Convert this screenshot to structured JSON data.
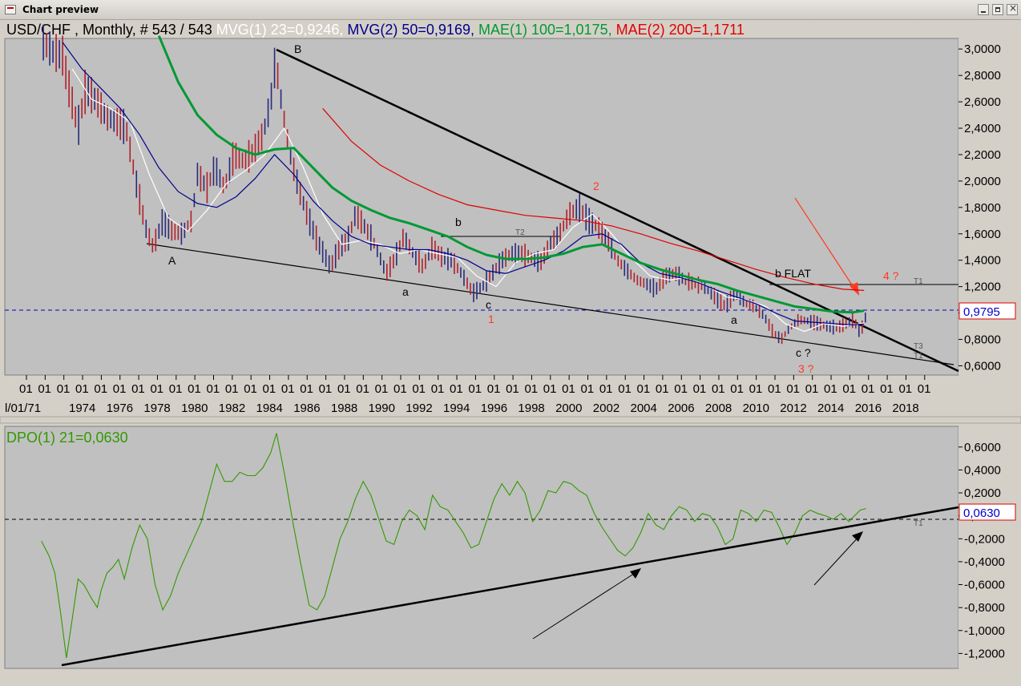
{
  "window": {
    "title": "Chart preview"
  },
  "top_legend": [
    {
      "text": "USD/CHF , Monthly, # 543 / 543",
      "color": "#000000"
    },
    {
      "text": " MVG(1) 23=0,9246,",
      "color": "#ffffff"
    },
    {
      "text": " MVG(2) 50=0,9169,",
      "color": "#00008b"
    },
    {
      "text": " MAE(1) 100=1,0175,",
      "color": "#009933"
    },
    {
      "text": " MAE(2) 200=1,1711",
      "color": "#e00000"
    }
  ],
  "bottom_legend": {
    "text": "DPO(1) 21=0,0630",
    "color": "#339900"
  },
  "price_tag": "0,9795",
  "dpo_tag": "0,0630",
  "x_axis": {
    "month_marks": [
      "01",
      "01",
      "01",
      "01",
      "01",
      "01",
      "01",
      "01",
      "01",
      "01",
      "01",
      "01",
      "01",
      "01",
      "01",
      "01",
      "01",
      "01",
      "01",
      "01",
      "01",
      "01",
      "01",
      "01",
      "01",
      "01",
      "01",
      "01",
      "01",
      "01",
      "01",
      "01",
      "01",
      "01",
      "01",
      "01",
      "01",
      "01",
      "01",
      "01",
      "01",
      "01",
      "01",
      "01",
      "01",
      "01",
      "01",
      "01",
      "01"
    ],
    "first_label": "l/01/71",
    "years": [
      "1974",
      "1976",
      "1978",
      "1980",
      "1982",
      "1984",
      "1986",
      "1988",
      "1990",
      "1992",
      "1994",
      "1996",
      "1998",
      "2000",
      "2002",
      "2004",
      "2006",
      "2008",
      "2010",
      "2012",
      "2014",
      "2016",
      "2018"
    ]
  },
  "annotations": {
    "A": "A",
    "B": "B",
    "b1": "b",
    "a1": "a",
    "c1": "c",
    "one": "1",
    "two": "2",
    "a2": "a",
    "bflat": "b FLAT",
    "c2": "c ?",
    "three": "3 ?",
    "four": "4 ?",
    "T1": "T1",
    "T2": "T2",
    "T3": "T3",
    "T1b": "T1",
    "T1c": "T1"
  },
  "chart_data": [
    {
      "type": "line",
      "title": "USD/CHF , Monthly, # 543 / 543",
      "y_ticks": [
        "3,0000",
        "2,8000",
        "2,6000",
        "2,4000",
        "2,2000",
        "2,0000",
        "1,8000",
        "1,6000",
        "1,4000",
        "1,2000",
        "1,0000",
        "0,8000",
        "0,6000"
      ],
      "y_tick_values": [
        3.0,
        2.8,
        2.6,
        2.4,
        2.2,
        2.0,
        1.8,
        1.6,
        1.4,
        1.2,
        1.0,
        0.8,
        0.6
      ],
      "ylim": [
        0.53,
        3.08
      ],
      "xlim": [
        1971.0,
        2020.5
      ],
      "current_value": 0.9795,
      "series": [
        {
          "name": "USD/CHF",
          "color": "#2a2a7a",
          "x": [
            1973.0,
            1973.5,
            1974.0,
            1974.3,
            1974.8,
            1975.2,
            1975.8,
            1976.3,
            1976.8,
            1977.3,
            1977.8,
            1978.3,
            1978.7,
            1979.2,
            1979.7,
            1980.2,
            1980.7,
            1981.0,
            1981.5,
            1981.9,
            1982.4,
            1982.9,
            1983.4,
            1983.9,
            1984.4,
            1984.8,
            1985.05,
            1985.4,
            1985.8,
            1986.3,
            1986.8,
            1987.3,
            1987.9,
            1988.4,
            1988.8,
            1989.2,
            1989.7,
            1990.2,
            1990.8,
            1991.2,
            1991.7,
            1992.2,
            1992.7,
            1993.2,
            1993.7,
            1994.2,
            1994.7,
            1995.3,
            1995.8,
            1996.3,
            1996.8,
            1997.3,
            1997.8,
            1998.3,
            1998.8,
            1999.3,
            1999.8,
            2000.3,
            2000.8,
            2001.3,
            2001.8,
            2002.3,
            2002.8,
            2003.3,
            2003.8,
            2004.3,
            2004.8,
            2005.3,
            2005.8,
            2006.3,
            2006.8,
            2007.3,
            2007.9,
            2008.4,
            2008.9,
            2009.4,
            2009.9,
            2010.4,
            2010.9,
            2011.3,
            2011.7,
            2012.2,
            2012.7,
            2013.2,
            2013.7,
            2014.2,
            2014.7,
            2015.05,
            2015.4,
            2015.7
          ],
          "y": [
            3.05,
            2.98,
            2.95,
            2.72,
            2.4,
            2.7,
            2.6,
            2.48,
            2.45,
            2.4,
            2.0,
            1.65,
            1.5,
            1.7,
            1.62,
            1.6,
            1.7,
            2.05,
            1.95,
            2.1,
            1.95,
            2.2,
            2.15,
            2.22,
            2.35,
            2.6,
            2.92,
            2.55,
            2.2,
            1.92,
            1.7,
            1.52,
            1.35,
            1.5,
            1.55,
            1.75,
            1.65,
            1.52,
            1.3,
            1.4,
            1.58,
            1.45,
            1.35,
            1.5,
            1.42,
            1.4,
            1.3,
            1.15,
            1.2,
            1.3,
            1.4,
            1.45,
            1.45,
            1.42,
            1.38,
            1.52,
            1.6,
            1.75,
            1.8,
            1.7,
            1.65,
            1.55,
            1.4,
            1.32,
            1.25,
            1.22,
            1.18,
            1.28,
            1.3,
            1.25,
            1.22,
            1.2,
            1.12,
            1.05,
            1.15,
            1.08,
            1.05,
            0.98,
            0.85,
            0.8,
            0.88,
            0.95,
            0.94,
            0.92,
            0.9,
            0.89,
            0.92,
            0.95,
            0.85,
            0.98
          ]
        },
        {
          "name": "MVG(1) 23",
          "color": "#ffffff",
          "x": [
            1974.5,
            1975.5,
            1976.5,
            1977.5,
            1978.5,
            1979.5,
            1980.5,
            1981.5,
            1982.5,
            1983.5,
            1984.5,
            1985.5,
            1986.5,
            1987.5,
            1988.5,
            1989.5,
            1990.5,
            1991.5,
            1992.5,
            1993.5,
            1994.5,
            1995.5,
            1996.5,
            1997.5,
            1998.5,
            1999.5,
            2000.5,
            2001.5,
            2002.5,
            2003.5,
            2004.5,
            2005.5,
            2006.5,
            2007.5,
            2008.5,
            2009.5,
            2010.5,
            2011.5,
            2012.5,
            2013.5,
            2014.5,
            2015.6
          ],
          "y": [
            2.85,
            2.62,
            2.55,
            2.45,
            2.05,
            1.72,
            1.62,
            1.78,
            1.98,
            2.08,
            2.2,
            2.4,
            2.1,
            1.75,
            1.52,
            1.55,
            1.52,
            1.45,
            1.48,
            1.45,
            1.42,
            1.28,
            1.2,
            1.38,
            1.45,
            1.48,
            1.65,
            1.75,
            1.6,
            1.42,
            1.28,
            1.25,
            1.27,
            1.2,
            1.12,
            1.1,
            1.05,
            0.92,
            0.86,
            0.92,
            0.9,
            0.9246
          ]
        },
        {
          "name": "MVG(2) 50",
          "color": "#00008b",
          "x": [
            1974.0,
            1975.0,
            1976.0,
            1977.0,
            1978.0,
            1979.0,
            1980.0,
            1981.0,
            1982.0,
            1983.0,
            1984.0,
            1985.0,
            1986.0,
            1987.0,
            1988.0,
            1989.0,
            1990.0,
            1991.0,
            1992.0,
            1993.0,
            1994.0,
            1995.0,
            1996.0,
            1997.0,
            1998.0,
            1999.0,
            2000.0,
            2001.0,
            2002.0,
            2003.0,
            2004.0,
            2005.0,
            2006.0,
            2007.0,
            2008.0,
            2009.0,
            2010.0,
            2011.0,
            2012.0,
            2013.0,
            2014.0,
            2015.0,
            2015.6
          ],
          "y": [
            3.05,
            2.85,
            2.7,
            2.55,
            2.35,
            2.1,
            1.92,
            1.83,
            1.8,
            1.88,
            2.02,
            2.2,
            2.05,
            1.85,
            1.7,
            1.58,
            1.52,
            1.5,
            1.48,
            1.48,
            1.45,
            1.4,
            1.32,
            1.3,
            1.35,
            1.4,
            1.47,
            1.58,
            1.6,
            1.52,
            1.38,
            1.3,
            1.27,
            1.23,
            1.17,
            1.12,
            1.07,
            1.0,
            0.94,
            0.93,
            0.92,
            0.91,
            0.9169
          ]
        },
        {
          "name": "MAE(1) 100",
          "color": "#009933",
          "x": [
            1979.0,
            1980.0,
            1981.0,
            1982.0,
            1983.0,
            1984.0,
            1985.0,
            1986.0,
            1987.0,
            1988.0,
            1989.0,
            1990.0,
            1991.0,
            1992.0,
            1993.0,
            1994.0,
            1995.0,
            1996.0,
            1997.0,
            1998.0,
            1999.0,
            2000.0,
            2001.0,
            2002.0,
            2003.0,
            2004.0,
            2005.0,
            2006.0,
            2007.0,
            2008.0,
            2009.0,
            2010.0,
            2011.0,
            2012.0,
            2013.0,
            2014.0,
            2015.0,
            2015.6
          ],
          "y": [
            3.1,
            2.75,
            2.5,
            2.35,
            2.25,
            2.2,
            2.24,
            2.25,
            2.1,
            1.95,
            1.85,
            1.78,
            1.72,
            1.68,
            1.63,
            1.58,
            1.5,
            1.44,
            1.41,
            1.41,
            1.42,
            1.45,
            1.5,
            1.52,
            1.45,
            1.38,
            1.33,
            1.29,
            1.25,
            1.22,
            1.17,
            1.13,
            1.09,
            1.05,
            1.03,
            1.01,
            1.005,
            1.0175
          ]
        },
        {
          "name": "MAE(2) 200",
          "color": "#e00000",
          "x": [
            1987.5,
            1989.0,
            1990.5,
            1992.0,
            1993.5,
            1995.0,
            1996.5,
            1998.0,
            1999.5,
            2001.0,
            2002.5,
            2004.0,
            2005.5,
            2007.0,
            2008.5,
            2010.0,
            2011.5,
            2013.0,
            2014.5,
            2015.6
          ],
          "y": [
            2.55,
            2.3,
            2.12,
            2.0,
            1.9,
            1.82,
            1.78,
            1.74,
            1.72,
            1.7,
            1.66,
            1.6,
            1.53,
            1.47,
            1.4,
            1.33,
            1.27,
            1.22,
            1.18,
            1.1711
          ]
        }
      ]
    },
    {
      "type": "line",
      "title": "DPO(1) 21=0,0630",
      "y_ticks": [
        "0,6000",
        "0,4000",
        "0,2000",
        "0,0000",
        "-0,2000",
        "-0,4000",
        "-0,6000",
        "-0,8000",
        "-1,0000",
        "-1,2000"
      ],
      "y_tick_values": [
        0.6,
        0.4,
        0.2,
        0.0,
        -0.2,
        -0.4,
        -0.6,
        -0.8,
        -1.0,
        -1.2
      ],
      "ylim": [
        -1.33,
        0.78
      ],
      "current_value": 0.063,
      "series": [
        {
          "name": "DPO(1) 21",
          "color": "#339900",
          "x": [
            1972.9,
            1973.3,
            1973.6,
            1973.9,
            1974.2,
            1974.5,
            1974.8,
            1975.1,
            1975.5,
            1975.8,
            1976.0,
            1976.3,
            1976.6,
            1976.9,
            1977.2,
            1977.6,
            1978.0,
            1978.4,
            1978.8,
            1979.2,
            1979.6,
            1980.0,
            1980.4,
            1980.8,
            1981.2,
            1981.6,
            1982.0,
            1982.4,
            1982.8,
            1983.2,
            1983.6,
            1984.0,
            1984.4,
            1984.8,
            1985.1,
            1985.5,
            1986.0,
            1986.4,
            1986.8,
            1987.2,
            1987.6,
            1988.0,
            1988.4,
            1988.8,
            1989.2,
            1989.6,
            1990.0,
            1990.4,
            1990.8,
            1991.2,
            1991.6,
            1992.0,
            1992.4,
            1992.8,
            1993.2,
            1993.6,
            1994.0,
            1994.4,
            1994.8,
            1995.2,
            1995.6,
            1996.0,
            1996.4,
            1996.8,
            1997.2,
            1997.6,
            1998.0,
            1998.4,
            1998.8,
            1999.2,
            1999.6,
            2000.0,
            2000.4,
            2000.8,
            2001.2,
            2001.6,
            2002.0,
            2002.4,
            2002.8,
            2003.2,
            2003.6,
            2004.0,
            2004.4,
            2004.8,
            2005.2,
            2005.6,
            2006.0,
            2006.4,
            2006.8,
            2007.2,
            2007.6,
            2008.0,
            2008.4,
            2008.8,
            2009.2,
            2009.6,
            2010.0,
            2010.4,
            2010.8,
            2011.2,
            2011.6,
            2012.0,
            2012.4,
            2012.8,
            2013.2,
            2013.6,
            2014.0,
            2014.4,
            2014.8,
            2015.1,
            2015.4,
            2015.7
          ],
          "y": [
            -0.22,
            -0.35,
            -0.5,
            -0.85,
            -1.24,
            -0.9,
            -0.55,
            -0.6,
            -0.72,
            -0.8,
            -0.65,
            -0.5,
            -0.45,
            -0.38,
            -0.55,
            -0.28,
            -0.08,
            -0.2,
            -0.6,
            -0.82,
            -0.7,
            -0.5,
            -0.35,
            -0.2,
            -0.05,
            0.2,
            0.45,
            0.3,
            0.3,
            0.38,
            0.35,
            0.35,
            0.42,
            0.55,
            0.72,
            0.38,
            -0.1,
            -0.45,
            -0.78,
            -0.82,
            -0.7,
            -0.45,
            -0.2,
            -0.05,
            0.15,
            0.3,
            0.18,
            -0.02,
            -0.22,
            -0.25,
            -0.05,
            0.05,
            0.0,
            -0.12,
            0.18,
            0.08,
            0.05,
            -0.05,
            -0.15,
            -0.28,
            -0.25,
            -0.05,
            0.15,
            0.28,
            0.18,
            0.3,
            0.2,
            -0.05,
            0.05,
            0.22,
            0.2,
            0.3,
            0.28,
            0.22,
            0.18,
            0.02,
            -0.1,
            -0.2,
            -0.3,
            -0.35,
            -0.28,
            -0.15,
            0.02,
            -0.08,
            -0.12,
            0.0,
            0.08,
            0.05,
            -0.05,
            0.02,
            0.0,
            -0.1,
            -0.25,
            -0.2,
            0.05,
            0.02,
            -0.05,
            0.05,
            0.03,
            -0.1,
            -0.25,
            -0.15,
            0.0,
            0.05,
            0.02,
            0.0,
            -0.03,
            0.02,
            -0.05,
            0.0,
            0.05,
            0.063
          ]
        }
      ]
    }
  ]
}
